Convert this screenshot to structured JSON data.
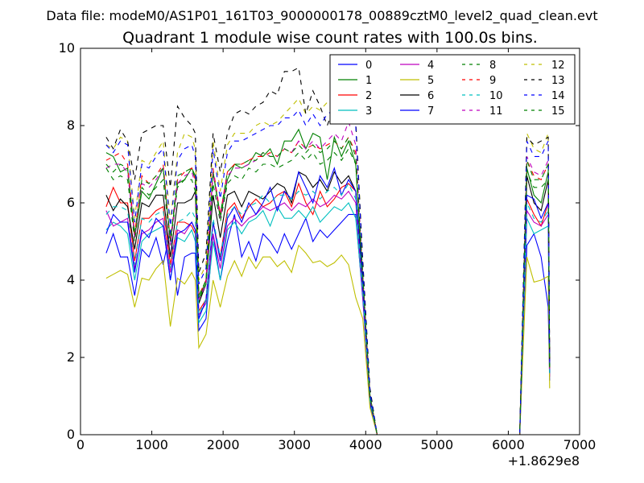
{
  "suptitle": "Data file: modeM0/AS1P01_161T03_9000000178_00889cztM0_level2_quad_clean.evt",
  "chart_data": {
    "type": "line",
    "title": "Quadrant 1 module wise count rates with 100.0s bins.",
    "xlabel": "",
    "ylabel": "",
    "x_offset_label": "+1.8629e8",
    "xlim": [
      0,
      7000
    ],
    "ylim": [
      0,
      10
    ],
    "xticks": [
      0,
      1000,
      2000,
      3000,
      4000,
      5000,
      6000,
      7000
    ],
    "yticks": [
      0,
      2,
      4,
      6,
      8,
      10
    ],
    "grid": false,
    "legend_position": "top-right",
    "legend_columns": 4,
    "colors": {
      "blue": "#0000ff",
      "green": "#008000",
      "red": "#ff0000",
      "cyan": "#00bfbf",
      "magenta": "#bf00bf",
      "olive": "#bfbf00",
      "black": "#000000"
    },
    "x": [
      360,
      460,
      560,
      660,
      760,
      860,
      960,
      1060,
      1160,
      1260,
      1360,
      1460,
      1560,
      1610,
      1660,
      1760,
      1860,
      1960,
      2060,
      2160,
      2260,
      2360,
      2460,
      2560,
      2660,
      2760,
      2860,
      2960,
      3060,
      3160,
      3260,
      3360,
      3460,
      3560,
      3660,
      3760,
      3860,
      3960,
      4060,
      4160,
      6060,
      6160,
      6260,
      6360,
      6460,
      6560,
      6580
    ],
    "series": [
      {
        "name": "0",
        "color": "#0000ff",
        "dash": "solid",
        "values": [
          4.7,
          5.2,
          4.6,
          4.6,
          3.6,
          4.8,
          4.6,
          5.1,
          4.4,
          5.3,
          3.6,
          4.6,
          4.7,
          4.7,
          2.7,
          3.0,
          5.2,
          4.0,
          5.0,
          5.7,
          4.6,
          5.0,
          4.5,
          5.2,
          5.0,
          4.7,
          5.2,
          4.8,
          5.2,
          5.6,
          5.0,
          5.3,
          5.1,
          5.3,
          5.5,
          5.7,
          5.7,
          3.5,
          0.8,
          0.0,
          0.0,
          0.0,
          4.9,
          5.2,
          4.6,
          3.3,
          1.4
        ]
      },
      {
        "name": "1",
        "color": "#008000",
        "dash": "solid",
        "values": [
          7.3,
          7.2,
          6.8,
          6.9,
          5.1,
          6.3,
          6.1,
          6.5,
          6.9,
          5.0,
          6.5,
          6.6,
          6.9,
          6.7,
          3.5,
          4.0,
          6.8,
          5.6,
          6.6,
          7.0,
          6.9,
          7.0,
          7.3,
          7.2,
          7.4,
          7.0,
          7.6,
          7.6,
          7.9,
          7.4,
          7.8,
          7.7,
          6.6,
          7.7,
          7.2,
          7.6,
          7.0,
          4.0,
          1.0,
          0.0,
          0.0,
          0.0,
          6.9,
          6.2,
          6.0,
          6.8,
          1.6
        ]
      },
      {
        "name": "2",
        "color": "#ff0000",
        "dash": "solid",
        "values": [
          5.9,
          6.4,
          6.0,
          6.0,
          4.5,
          5.6,
          5.6,
          5.8,
          5.9,
          4.4,
          5.5,
          5.5,
          5.4,
          5.2,
          3.2,
          3.5,
          5.5,
          4.6,
          5.8,
          6.0,
          5.6,
          5.9,
          6.1,
          5.9,
          6.0,
          6.2,
          6.3,
          5.9,
          6.5,
          6.0,
          5.7,
          6.3,
          5.9,
          6.1,
          6.4,
          6.5,
          6.3,
          3.7,
          0.9,
          0.0,
          0.0,
          0.0,
          6.1,
          5.7,
          5.4,
          6.0,
          1.5
        ]
      },
      {
        "name": "3",
        "color": "#00bfbf",
        "dash": "solid",
        "values": [
          5.3,
          5.5,
          5.4,
          5.2,
          4.0,
          5.0,
          5.2,
          5.3,
          5.4,
          4.0,
          5.1,
          5.0,
          5.3,
          5.0,
          2.9,
          3.2,
          5.0,
          4.0,
          5.3,
          5.5,
          5.2,
          5.5,
          5.6,
          5.8,
          5.4,
          5.9,
          5.6,
          5.6,
          5.8,
          5.6,
          5.9,
          5.5,
          5.7,
          5.9,
          5.8,
          6.0,
          5.6,
          3.6,
          0.9,
          0.0,
          0.0,
          0.0,
          5.6,
          5.2,
          5.3,
          5.4,
          1.5
        ]
      },
      {
        "name": "4",
        "color": "#bf00bf",
        "dash": "solid",
        "values": [
          5.8,
          5.4,
          5.5,
          5.6,
          4.3,
          5.2,
          5.3,
          5.5,
          5.6,
          4.2,
          5.3,
          5.2,
          5.5,
          5.3,
          3.1,
          3.4,
          5.2,
          4.3,
          5.4,
          5.6,
          5.4,
          5.6,
          5.7,
          5.9,
          5.8,
          5.9,
          6.0,
          5.8,
          6.0,
          5.9,
          6.1,
          5.9,
          6.0,
          6.2,
          6.1,
          6.3,
          6.0,
          3.6,
          0.9,
          0.0,
          0.0,
          0.0,
          5.8,
          5.5,
          5.4,
          5.7,
          1.5
        ]
      },
      {
        "name": "5",
        "color": "#bfbf00",
        "dash": "solid",
        "values": [
          4.05,
          4.15,
          4.25,
          4.15,
          3.3,
          4.05,
          4.0,
          4.3,
          4.5,
          2.8,
          4.05,
          3.9,
          4.2,
          4.0,
          2.25,
          2.6,
          4.0,
          3.3,
          4.1,
          4.5,
          4.1,
          4.6,
          4.3,
          4.6,
          4.6,
          4.35,
          4.5,
          4.2,
          4.9,
          4.7,
          4.45,
          4.5,
          4.35,
          4.45,
          4.65,
          4.4,
          3.55,
          3.0,
          0.7,
          0.0,
          0.0,
          0.0,
          4.6,
          3.95,
          4.0,
          4.1,
          1.2
        ]
      },
      {
        "name": "6",
        "color": "#000000",
        "dash": "solid",
        "values": [
          6.2,
          5.8,
          6.1,
          5.9,
          4.8,
          6.0,
          5.9,
          6.2,
          6.2,
          4.6,
          6.0,
          6.0,
          6.1,
          6.3,
          3.4,
          3.9,
          6.2,
          5.1,
          6.2,
          6.3,
          5.9,
          6.3,
          6.2,
          6.1,
          6.3,
          6.5,
          6.4,
          6.0,
          6.8,
          6.7,
          6.4,
          6.6,
          6.3,
          6.8,
          6.5,
          6.7,
          6.3,
          4.0,
          1.0,
          0.0,
          0.0,
          0.0,
          6.7,
          6.0,
          5.8,
          6.6,
          1.6
        ]
      },
      {
        "name": "7",
        "color": "#0000ff",
        "dash": "solid",
        "values": [
          5.2,
          5.7,
          5.5,
          5.5,
          4.2,
          5.3,
          5.1,
          5.6,
          5.4,
          4.0,
          5.2,
          5.3,
          5.5,
          5.3,
          3.0,
          3.5,
          5.5,
          4.5,
          5.6,
          5.9,
          5.5,
          6.0,
          5.7,
          6.0,
          6.4,
          5.8,
          6.3,
          6.1,
          6.8,
          6.4,
          6.0,
          6.7,
          6.4,
          6.9,
          6.2,
          6.6,
          6.3,
          3.8,
          0.9,
          0.0,
          0.0,
          0.0,
          6.2,
          6.1,
          5.6,
          6.0,
          1.6
        ]
      },
      {
        "name": "8",
        "color": "#008000",
        "dash": "dashed",
        "values": [
          6.9,
          6.6,
          6.7,
          6.6,
          5.0,
          6.4,
          6.2,
          6.4,
          6.6,
          4.9,
          6.4,
          6.6,
          6.6,
          6.3,
          3.5,
          3.9,
          6.5,
          5.5,
          6.5,
          6.7,
          6.6,
          6.9,
          6.8,
          7.0,
          7.0,
          6.9,
          7.0,
          7.1,
          7.3,
          7.1,
          7.3,
          7.0,
          7.1,
          7.3,
          7.1,
          7.4,
          7.0,
          4.0,
          1.0,
          0.0,
          0.0,
          0.0,
          6.8,
          6.4,
          6.4,
          6.6,
          1.6
        ]
      },
      {
        "name": "9",
        "color": "#ff0000",
        "dash": "dashed",
        "values": [
          7.1,
          7.2,
          7.3,
          7.0,
          5.2,
          6.7,
          6.5,
          6.7,
          7.0,
          5.0,
          6.6,
          6.8,
          6.9,
          6.6,
          3.6,
          4.0,
          6.9,
          5.7,
          6.8,
          7.0,
          7.0,
          7.1,
          7.2,
          7.2,
          7.3,
          7.2,
          7.4,
          7.3,
          7.6,
          7.4,
          7.5,
          7.4,
          7.5,
          7.6,
          7.4,
          7.7,
          7.3,
          4.1,
          1.0,
          0.0,
          0.0,
          0.0,
          7.1,
          6.7,
          6.6,
          7.0,
          1.7
        ]
      },
      {
        "name": "10",
        "color": "#00bfbf",
        "dash": "dashed",
        "values": [
          5.7,
          5.9,
          5.9,
          5.8,
          4.4,
          5.6,
          5.5,
          5.7,
          5.8,
          4.3,
          5.5,
          5.6,
          5.8,
          5.6,
          3.1,
          3.5,
          5.6,
          4.6,
          5.7,
          5.9,
          5.7,
          5.9,
          6.0,
          6.2,
          6.0,
          6.2,
          6.2,
          6.1,
          6.3,
          6.2,
          6.3,
          6.1,
          6.3,
          6.4,
          6.2,
          6.5,
          6.1,
          3.7,
          0.9,
          0.0,
          0.0,
          0.0,
          6.0,
          5.6,
          5.5,
          5.8,
          1.5
        ]
      },
      {
        "name": "11",
        "color": "#bf00bf",
        "dash": "dashed",
        "values": [
          6.9,
          7.0,
          7.0,
          6.8,
          5.1,
          6.5,
          6.4,
          6.6,
          6.9,
          4.9,
          6.5,
          6.7,
          6.8,
          6.5,
          3.5,
          3.9,
          6.8,
          5.6,
          6.7,
          6.9,
          6.9,
          7.0,
          7.1,
          7.3,
          7.2,
          7.2,
          7.4,
          7.3,
          7.6,
          7.4,
          7.6,
          7.4,
          7.6,
          7.8,
          7.6,
          8.1,
          7.5,
          4.1,
          1.0,
          0.0,
          0.0,
          0.0,
          7.2,
          6.8,
          6.7,
          7.1,
          1.7
        ]
      },
      {
        "name": "12",
        "color": "#bfbf00",
        "dash": "dashed",
        "values": [
          7.5,
          7.4,
          7.7,
          7.6,
          5.6,
          7.1,
          7.0,
          7.3,
          7.6,
          5.5,
          7.3,
          7.8,
          7.7,
          7.4,
          4.0,
          4.4,
          7.6,
          6.3,
          7.5,
          7.8,
          7.8,
          7.8,
          8.0,
          8.1,
          8.0,
          8.1,
          8.3,
          8.5,
          8.7,
          8.3,
          8.5,
          8.4,
          8.6,
          8.7,
          8.4,
          8.8,
          8.2,
          4.4,
          1.1,
          0.0,
          0.0,
          0.0,
          7.8,
          7.4,
          7.3,
          7.8,
          1.8
        ]
      },
      {
        "name": "13",
        "color": "#000000",
        "dash": "dashed",
        "values": [
          7.7,
          7.4,
          7.9,
          7.6,
          6.6,
          7.8,
          7.9,
          8.0,
          8.0,
          6.4,
          8.5,
          8.2,
          8.0,
          7.8,
          4.2,
          4.7,
          7.8,
          6.8,
          7.8,
          8.3,
          8.4,
          8.3,
          8.5,
          8.6,
          8.9,
          8.8,
          9.4,
          9.4,
          9.5,
          8.3,
          8.9,
          8.5,
          8.0,
          8.5,
          8.6,
          8.4,
          8.1,
          4.5,
          1.2,
          0.0,
          0.0,
          0.0,
          7.7,
          7.5,
          7.6,
          7.7,
          1.9
        ]
      },
      {
        "name": "14",
        "color": "#0000ff",
        "dash": "dashed",
        "values": [
          7.5,
          7.3,
          7.6,
          7.5,
          5.5,
          7.0,
          6.9,
          7.2,
          7.4,
          5.4,
          7.1,
          7.4,
          7.5,
          7.2,
          3.9,
          4.3,
          7.4,
          6.1,
          7.3,
          7.6,
          7.6,
          7.7,
          7.8,
          7.9,
          8.0,
          8.0,
          8.2,
          8.2,
          8.4,
          8.0,
          8.3,
          8.0,
          8.3,
          8.4,
          8.1,
          8.5,
          8.0,
          4.3,
          1.1,
          0.0,
          0.0,
          0.0,
          7.6,
          7.2,
          7.2,
          7.6,
          1.8
        ]
      },
      {
        "name": "15",
        "color": "#008000",
        "dash": "dashed",
        "values": [
          7.0,
          6.8,
          7.0,
          6.9,
          5.2,
          6.6,
          6.5,
          6.7,
          6.9,
          5.0,
          6.7,
          6.8,
          6.9,
          6.6,
          3.6,
          4.0,
          6.8,
          5.7,
          6.8,
          7.0,
          7.0,
          7.1,
          7.1,
          7.3,
          7.2,
          7.2,
          7.4,
          7.3,
          7.5,
          7.3,
          7.5,
          7.3,
          7.4,
          7.6,
          7.4,
          7.7,
          7.2,
          4.1,
          1.0,
          0.0,
          0.0,
          0.0,
          7.1,
          6.6,
          6.6,
          7.0,
          1.7
        ]
      }
    ]
  }
}
